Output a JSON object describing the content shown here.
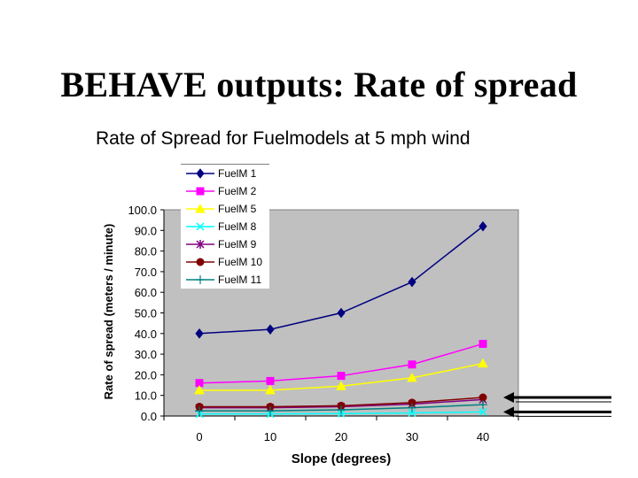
{
  "title": "BEHAVE outputs: Rate of spread",
  "chart_data": {
    "type": "line",
    "title": "Rate of Spread for Fuelmodels at 5 mph wind",
    "xlabel": "Slope (degrees)",
    "ylabel": "Rate of spread (meters / minute)",
    "categories": [
      "0",
      "10",
      "20",
      "30",
      "40"
    ],
    "y_ticks": [
      "100.0",
      "90.0",
      "80.0",
      "70.0",
      "60.0",
      "50.0",
      "40.0",
      "30.0",
      "20.0",
      "10.0",
      "0.0"
    ],
    "ylim": [
      0,
      100
    ],
    "plot_background": "#c0c0c0",
    "legend_position": "top-left",
    "series": [
      {
        "name": "FuelM 1",
        "color": "#000080",
        "marker": "diamond",
        "values": [
          40.0,
          42.0,
          50.0,
          65.0,
          92.0
        ]
      },
      {
        "name": "FuelM 2",
        "color": "#ff00ff",
        "marker": "square",
        "values": [
          16.0,
          17.0,
          19.5,
          25.0,
          35.0
        ]
      },
      {
        "name": "FuelM 5",
        "color": "#ffff00",
        "marker": "triangle",
        "values": [
          12.5,
          12.5,
          14.5,
          18.5,
          25.5
        ]
      },
      {
        "name": "FuelM 8",
        "color": "#00ffff",
        "marker": "x",
        "values": [
          1.0,
          1.0,
          1.2,
          1.5,
          2.0
        ]
      },
      {
        "name": "FuelM 9",
        "color": "#800080",
        "marker": "star",
        "values": [
          4.0,
          4.0,
          4.5,
          5.8,
          8.0
        ]
      },
      {
        "name": "FuelM 10",
        "color": "#800000",
        "marker": "circle",
        "values": [
          4.5,
          4.5,
          5.0,
          6.5,
          9.0
        ]
      },
      {
        "name": "FuelM 11",
        "color": "#008080",
        "marker": "plus",
        "values": [
          2.5,
          2.5,
          3.0,
          4.0,
          5.5
        ]
      }
    ],
    "annotations": [
      {
        "type": "arrow",
        "direction": "left",
        "pointing_at_value": 9.0
      },
      {
        "type": "arrow",
        "direction": "left",
        "pointing_at_value": 2.0
      }
    ]
  }
}
